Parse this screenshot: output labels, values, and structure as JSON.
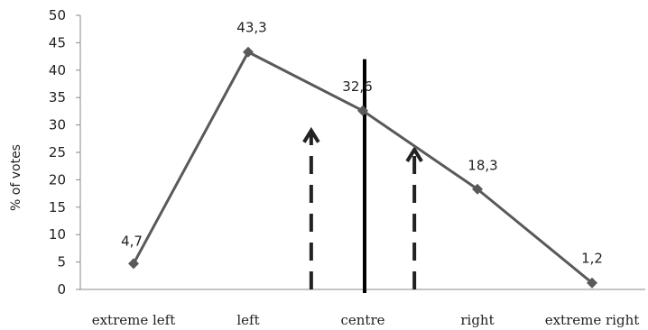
{
  "chart_data": {
    "type": "line",
    "categories": [
      "extreme left",
      "left",
      "centre",
      "right",
      "extreme right"
    ],
    "series": [
      {
        "values": [
          4.7,
          43.3,
          32.6,
          18.3,
          1.2
        ],
        "color": "#595959"
      }
    ],
    "data_labels": [
      "4,7",
      "43,3",
      "32,6",
      "18,3",
      "1,2"
    ],
    "xlabel": "",
    "ylabel": "% of votes",
    "ylim": [
      0,
      50
    ],
    "yticks": [
      0,
      5,
      10,
      15,
      20,
      25,
      30,
      35,
      40,
      45,
      50
    ],
    "grid": false,
    "legend": "none",
    "marker": "diamond",
    "annotations": [
      {
        "type": "vertical-line",
        "x": "centre",
        "ylim": [
          0,
          42
        ],
        "style": "solid",
        "color": "#000000"
      },
      {
        "type": "dashed-arrow",
        "x": 1.55,
        "from_y": 0,
        "to_y": 29,
        "color": "#222222"
      },
      {
        "type": "dashed-arrow",
        "x": 2.45,
        "from_y": 0,
        "to_y": 25.5,
        "color": "#222222"
      }
    ]
  }
}
